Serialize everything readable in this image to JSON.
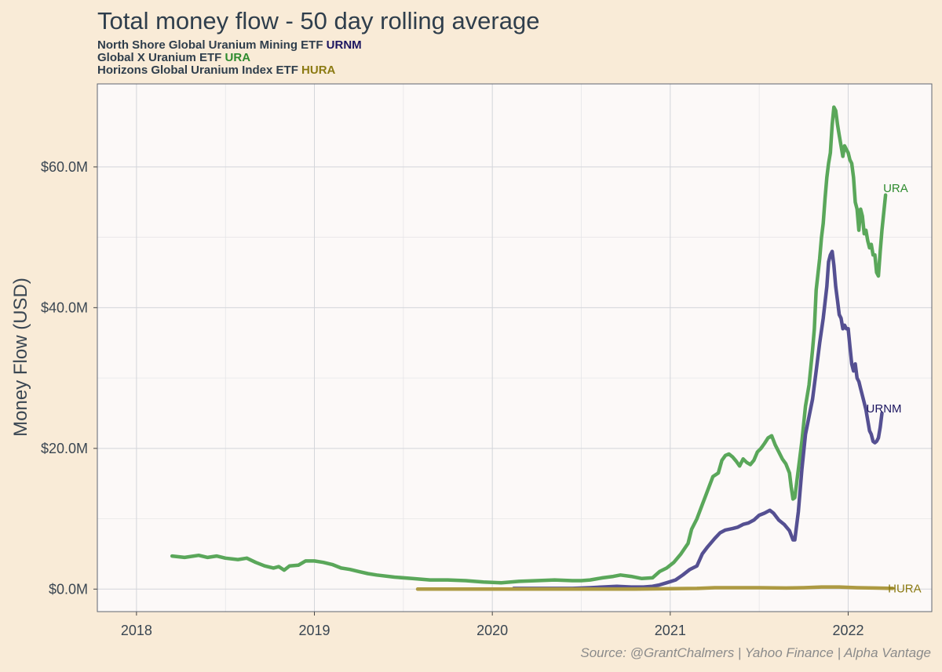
{
  "chart_data": {
    "type": "line",
    "title": "Total money flow - 50 day rolling average",
    "subtitle_lines": [
      {
        "text": "North Shore Global Uranium Mining ETF",
        "ticker": "URNM",
        "ticker_color": "#1c1660"
      },
      {
        "text": "Global X Uranium ETF",
        "ticker": "URA",
        "ticker_color": "#2e8b2e"
      },
      {
        "text": "Horizons Global Uranium Index ETF",
        "ticker": "HURA",
        "ticker_color": "#8b7a12"
      }
    ],
    "xlabel": "",
    "ylabel": "Money Flow (USD)",
    "xlim": [
      2017.78,
      2022.47
    ],
    "ylim": [
      -3.2,
      71.8
    ],
    "x_ticks": [
      2018,
      2019,
      2020,
      2021,
      2022
    ],
    "x_tick_labels": [
      "2018",
      "2019",
      "2020",
      "2021",
      "2022"
    ],
    "y_ticks": [
      0,
      20,
      40,
      60
    ],
    "y_tick_labels": [
      "$0.0M",
      "$20.0M",
      "$40.0M",
      "$60.0M"
    ],
    "y_units": "USD millions",
    "grid": true,
    "legend": "direct labels at line ends",
    "caption": "Source: @GrantChalmers | Yahoo Finance | Alpha Vantage",
    "series": [
      {
        "name": "URA",
        "color": "#5aa75a",
        "label": "URA",
        "label_color": "#2e8b2e",
        "points": [
          [
            2018.2,
            4.7
          ],
          [
            2018.27,
            4.5
          ],
          [
            2018.35,
            4.8
          ],
          [
            2018.4,
            4.5
          ],
          [
            2018.45,
            4.7
          ],
          [
            2018.5,
            4.4
          ],
          [
            2018.57,
            4.2
          ],
          [
            2018.62,
            4.4
          ],
          [
            2018.67,
            3.8
          ],
          [
            2018.72,
            3.3
          ],
          [
            2018.77,
            3.0
          ],
          [
            2018.8,
            3.2
          ],
          [
            2018.83,
            2.7
          ],
          [
            2018.86,
            3.3
          ],
          [
            2018.91,
            3.4
          ],
          [
            2018.95,
            4.0
          ],
          [
            2019.0,
            4.0
          ],
          [
            2019.05,
            3.8
          ],
          [
            2019.1,
            3.5
          ],
          [
            2019.15,
            3.0
          ],
          [
            2019.2,
            2.8
          ],
          [
            2019.25,
            2.5
          ],
          [
            2019.3,
            2.2
          ],
          [
            2019.35,
            2.0
          ],
          [
            2019.45,
            1.7
          ],
          [
            2019.55,
            1.5
          ],
          [
            2019.65,
            1.3
          ],
          [
            2019.75,
            1.3
          ],
          [
            2019.85,
            1.2
          ],
          [
            2019.95,
            1.0
          ],
          [
            2020.05,
            0.9
          ],
          [
            2020.15,
            1.1
          ],
          [
            2020.25,
            1.2
          ],
          [
            2020.35,
            1.3
          ],
          [
            2020.45,
            1.2
          ],
          [
            2020.5,
            1.2
          ],
          [
            2020.55,
            1.3
          ],
          [
            2020.62,
            1.6
          ],
          [
            2020.68,
            1.8
          ],
          [
            2020.72,
            2.0
          ],
          [
            2020.78,
            1.8
          ],
          [
            2020.84,
            1.5
          ],
          [
            2020.9,
            1.6
          ],
          [
            2020.94,
            2.5
          ],
          [
            2020.98,
            3.0
          ],
          [
            2021.02,
            3.8
          ],
          [
            2021.06,
            5.0
          ],
          [
            2021.1,
            6.5
          ],
          [
            2021.12,
            8.5
          ],
          [
            2021.15,
            10.0
          ],
          [
            2021.18,
            12.0
          ],
          [
            2021.21,
            14.0
          ],
          [
            2021.24,
            16.0
          ],
          [
            2021.27,
            16.5
          ],
          [
            2021.29,
            18.3
          ],
          [
            2021.31,
            19.0
          ],
          [
            2021.33,
            19.2
          ],
          [
            2021.35,
            18.8
          ],
          [
            2021.37,
            18.2
          ],
          [
            2021.39,
            17.5
          ],
          [
            2021.41,
            18.5
          ],
          [
            2021.43,
            18.0
          ],
          [
            2021.45,
            17.7
          ],
          [
            2021.47,
            18.3
          ],
          [
            2021.49,
            19.5
          ],
          [
            2021.51,
            20.0
          ],
          [
            2021.53,
            20.7
          ],
          [
            2021.55,
            21.5
          ],
          [
            2021.57,
            21.8
          ],
          [
            2021.59,
            20.5
          ],
          [
            2021.61,
            19.5
          ],
          [
            2021.63,
            18.5
          ],
          [
            2021.65,
            17.8
          ],
          [
            2021.67,
            16.5
          ],
          [
            2021.68,
            14.5
          ],
          [
            2021.69,
            12.8
          ],
          [
            2021.7,
            13.0
          ],
          [
            2021.72,
            17.0
          ],
          [
            2021.74,
            21.0
          ],
          [
            2021.76,
            26.0
          ],
          [
            2021.78,
            29.0
          ],
          [
            2021.8,
            34.0
          ],
          [
            2021.81,
            37.0
          ],
          [
            2021.82,
            42.5
          ],
          [
            2021.84,
            47.0
          ],
          [
            2021.85,
            50.0
          ],
          [
            2021.86,
            52.0
          ],
          [
            2021.87,
            55.5
          ],
          [
            2021.88,
            58.5
          ],
          [
            2021.89,
            60.5
          ],
          [
            2021.9,
            62.0
          ],
          [
            2021.91,
            66.0
          ],
          [
            2021.92,
            68.5
          ],
          [
            2021.93,
            68.0
          ],
          [
            2021.94,
            66.0
          ],
          [
            2021.95,
            64.5
          ],
          [
            2021.96,
            63.0
          ],
          [
            2021.97,
            61.5
          ],
          [
            2021.98,
            63.0
          ],
          [
            2021.99,
            62.5
          ],
          [
            2022.0,
            62.0
          ],
          [
            2022.01,
            61.0
          ],
          [
            2022.02,
            60.5
          ],
          [
            2022.03,
            58.5
          ],
          [
            2022.04,
            55.0
          ],
          [
            2022.05,
            54.0
          ],
          [
            2022.06,
            51.0
          ],
          [
            2022.07,
            54.0
          ],
          [
            2022.08,
            53.0
          ],
          [
            2022.09,
            50.5
          ],
          [
            2022.1,
            51.0
          ],
          [
            2022.11,
            49.5
          ],
          [
            2022.12,
            48.5
          ],
          [
            2022.13,
            49.0
          ],
          [
            2022.14,
            47.5
          ],
          [
            2022.15,
            47.5
          ],
          [
            2022.16,
            45.0
          ],
          [
            2022.17,
            44.5
          ],
          [
            2022.18,
            48.0
          ],
          [
            2022.19,
            51.0
          ],
          [
            2022.2,
            53.5
          ],
          [
            2022.21,
            56.0
          ]
        ]
      },
      {
        "name": "URNM",
        "color": "#555092",
        "label": "URNM",
        "label_color": "#1c1660",
        "points": [
          [
            2020.12,
            0.1
          ],
          [
            2020.25,
            0.1
          ],
          [
            2020.35,
            0.1
          ],
          [
            2020.45,
            0.1
          ],
          [
            2020.55,
            0.2
          ],
          [
            2020.62,
            0.3
          ],
          [
            2020.7,
            0.4
          ],
          [
            2020.78,
            0.3
          ],
          [
            2020.85,
            0.3
          ],
          [
            2020.9,
            0.4
          ],
          [
            2020.94,
            0.6
          ],
          [
            2020.98,
            0.9
          ],
          [
            2021.03,
            1.3
          ],
          [
            2021.07,
            2.0
          ],
          [
            2021.11,
            2.8
          ],
          [
            2021.15,
            3.3
          ],
          [
            2021.18,
            5.0
          ],
          [
            2021.21,
            6.0
          ],
          [
            2021.25,
            7.2
          ],
          [
            2021.28,
            8.0
          ],
          [
            2021.31,
            8.4
          ],
          [
            2021.35,
            8.6
          ],
          [
            2021.38,
            8.8
          ],
          [
            2021.41,
            9.2
          ],
          [
            2021.44,
            9.4
          ],
          [
            2021.47,
            9.8
          ],
          [
            2021.5,
            10.5
          ],
          [
            2021.53,
            10.8
          ],
          [
            2021.56,
            11.2
          ],
          [
            2021.58,
            10.8
          ],
          [
            2021.61,
            9.8
          ],
          [
            2021.64,
            9.2
          ],
          [
            2021.67,
            8.3
          ],
          [
            2021.69,
            7.0
          ],
          [
            2021.7,
            7.0
          ],
          [
            2021.72,
            11.0
          ],
          [
            2021.74,
            17.0
          ],
          [
            2021.76,
            22.0
          ],
          [
            2021.78,
            24.5
          ],
          [
            2021.8,
            27.0
          ],
          [
            2021.82,
            31.0
          ],
          [
            2021.84,
            35.0
          ],
          [
            2021.86,
            38.5
          ],
          [
            2021.88,
            43.0
          ],
          [
            2021.89,
            46.5
          ],
          [
            2021.9,
            47.5
          ],
          [
            2021.91,
            48.0
          ],
          [
            2021.92,
            46.0
          ],
          [
            2021.93,
            43.0
          ],
          [
            2021.94,
            41.0
          ],
          [
            2021.95,
            39.0
          ],
          [
            2021.96,
            38.5
          ],
          [
            2021.97,
            37.0
          ],
          [
            2021.98,
            37.5
          ],
          [
            2021.99,
            37.0
          ],
          [
            2022.0,
            37.0
          ],
          [
            2022.01,
            34.5
          ],
          [
            2022.02,
            32.0
          ],
          [
            2022.03,
            31.0
          ],
          [
            2022.04,
            32.0
          ],
          [
            2022.05,
            30.0
          ],
          [
            2022.06,
            29.5
          ],
          [
            2022.07,
            28.5
          ],
          [
            2022.08,
            27.5
          ],
          [
            2022.09,
            26.5
          ],
          [
            2022.1,
            25.5
          ],
          [
            2022.11,
            24.0
          ],
          [
            2022.12,
            22.5
          ],
          [
            2022.13,
            22.0
          ],
          [
            2022.14,
            21.0
          ],
          [
            2022.15,
            20.8
          ],
          [
            2022.16,
            21.0
          ],
          [
            2022.17,
            21.5
          ],
          [
            2022.18,
            23.0
          ],
          [
            2022.19,
            25.0
          ]
        ]
      },
      {
        "name": "HURA",
        "color": "#ad9a42",
        "label": "HURA",
        "label_color": "#8b7a12",
        "points": [
          [
            2019.58,
            0.0
          ],
          [
            2019.8,
            0.0
          ],
          [
            2020.0,
            0.0
          ],
          [
            2020.2,
            0.0
          ],
          [
            2020.4,
            0.0
          ],
          [
            2020.6,
            0.0
          ],
          [
            2020.8,
            0.0
          ],
          [
            2021.0,
            0.05
          ],
          [
            2021.15,
            0.1
          ],
          [
            2021.25,
            0.2
          ],
          [
            2021.35,
            0.2
          ],
          [
            2021.5,
            0.2
          ],
          [
            2021.65,
            0.15
          ],
          [
            2021.75,
            0.2
          ],
          [
            2021.85,
            0.3
          ],
          [
            2021.95,
            0.3
          ],
          [
            2022.05,
            0.2
          ],
          [
            2022.15,
            0.15
          ],
          [
            2022.25,
            0.1
          ]
        ]
      }
    ]
  }
}
